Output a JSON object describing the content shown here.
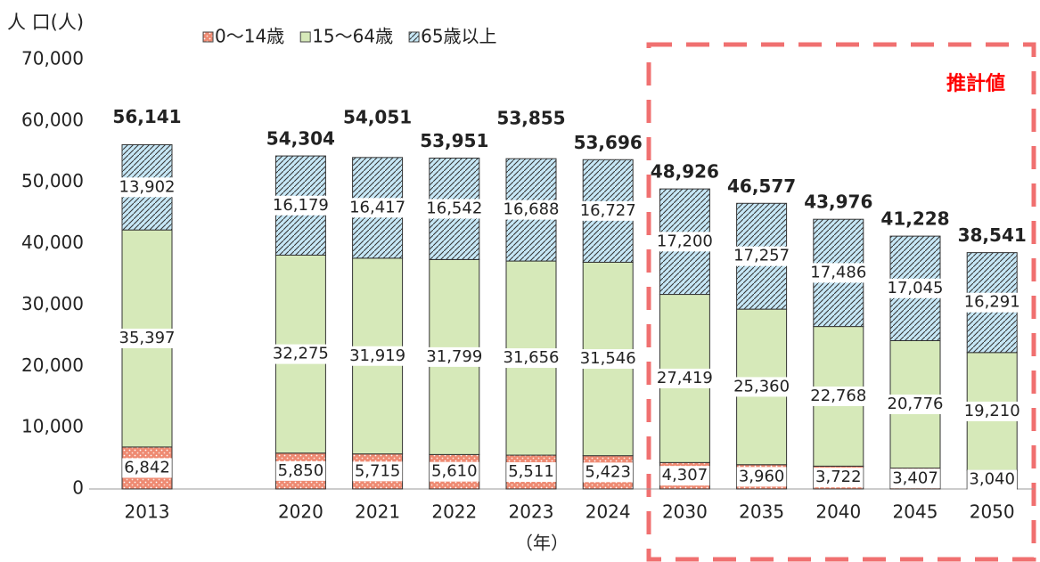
{
  "chart_data": {
    "type": "stacked-bar",
    "y_axis_label": "人 口(人)",
    "x_axis_label": "（年）",
    "annotation": "推計値",
    "categories": [
      "2013",
      "2020",
      "2021",
      "2022",
      "2023",
      "2024",
      "2030",
      "2035",
      "2040",
      "2045",
      "2050"
    ],
    "series": [
      {
        "name": "0〜14歳",
        "color": "#ee8a72",
        "pattern": "dots",
        "values": [
          6842,
          5850,
          5715,
          5610,
          5511,
          5423,
          4307,
          3960,
          3722,
          3407,
          3040
        ],
        "value_labels": [
          "6,842",
          "5,850",
          "5,715",
          "5,610",
          "5,511",
          "5,423",
          "4,307",
          "3,960",
          "3,722",
          "3,407",
          "3,040"
        ]
      },
      {
        "name": "15〜64歳",
        "color": "#d6e9b9",
        "pattern": "none",
        "values": [
          35397,
          32275,
          31919,
          31799,
          31656,
          31546,
          27419,
          25360,
          22768,
          20776,
          19210
        ],
        "value_labels": [
          "35,397",
          "32,275",
          "31,919",
          "31,799",
          "31,656",
          "31,546",
          "27,419",
          "25,360",
          "22,768",
          "20,776",
          "19,210"
        ]
      },
      {
        "name": "65歳以上",
        "color": "#c6e7f6",
        "pattern": "hatch",
        "values": [
          13902,
          16179,
          16417,
          16542,
          16688,
          16727,
          17200,
          17257,
          17486,
          17045,
          16291
        ],
        "value_labels": [
          "13,902",
          "16,179",
          "16,417",
          "16,542",
          "16,688",
          "16,727",
          "17,200",
          "17,257",
          "17,486",
          "17,045",
          "16,291"
        ]
      }
    ],
    "totals": [
      56141,
      54304,
      54051,
      53951,
      53855,
      53696,
      48926,
      46577,
      43976,
      41228,
      38541
    ],
    "total_labels": [
      "56,141",
      "54,304",
      "54,051",
      "53,951",
      "53,855",
      "53,696",
      "48,926",
      "46,577",
      "43,976",
      "41,228",
      "38,541"
    ],
    "ylim": [
      0,
      70000
    ],
    "yticks": [
      {
        "value": 0,
        "label": "0"
      },
      {
        "value": 10000,
        "label": "10,000"
      },
      {
        "value": 20000,
        "label": "20,000"
      },
      {
        "value": 30000,
        "label": "30,000"
      },
      {
        "value": 40000,
        "label": "40,000"
      },
      {
        "value": 50000,
        "label": "50,000"
      },
      {
        "value": 60000,
        "label": "60,000"
      },
      {
        "value": 70000,
        "label": "70,000"
      }
    ],
    "grid": false
  }
}
